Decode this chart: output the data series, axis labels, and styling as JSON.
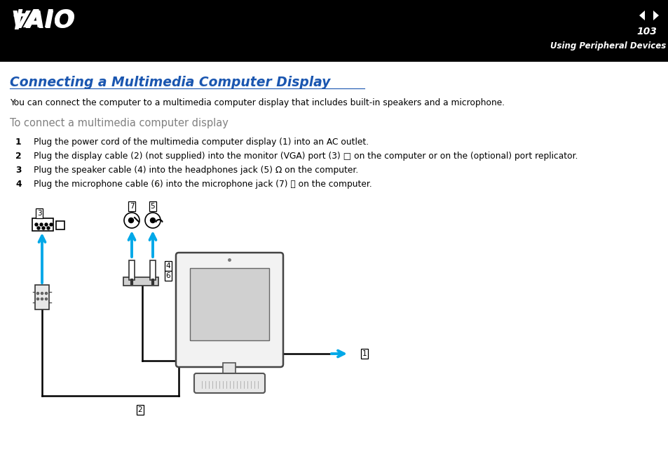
{
  "bg_header": "#000000",
  "bg_body": "#ffffff",
  "page_number": "103",
  "section_label": "Using Peripheral Devices",
  "title": "Connecting a Multimedia Computer Display",
  "title_color": "#1a56b0",
  "subtitle": "You can connect the computer to a multimedia computer display that includes built-in speakers and a microphone.",
  "subheading": "To connect a multimedia computer display",
  "subheading_color": "#808080",
  "steps": [
    {
      "num": "1",
      "text": "Plug the power cord of the multimedia computer display (1) into an AC outlet."
    },
    {
      "num": "2",
      "text": "Plug the display cable (2) (not supplied) into the monitor (VGA) port (3) □ on the computer or on the (optional) port replicator."
    },
    {
      "num": "3",
      "text": "Plug the speaker cable (4) into the headphones jack (5) Ω on the computer."
    },
    {
      "num": "4",
      "text": "Plug the microphone cable (6) into the microphone jack (7) ⤅ on the computer."
    }
  ],
  "cyan_color": "#00a8e8",
  "line_color": "#000000",
  "label_border": "#000000",
  "label_bg": "#ffffff"
}
